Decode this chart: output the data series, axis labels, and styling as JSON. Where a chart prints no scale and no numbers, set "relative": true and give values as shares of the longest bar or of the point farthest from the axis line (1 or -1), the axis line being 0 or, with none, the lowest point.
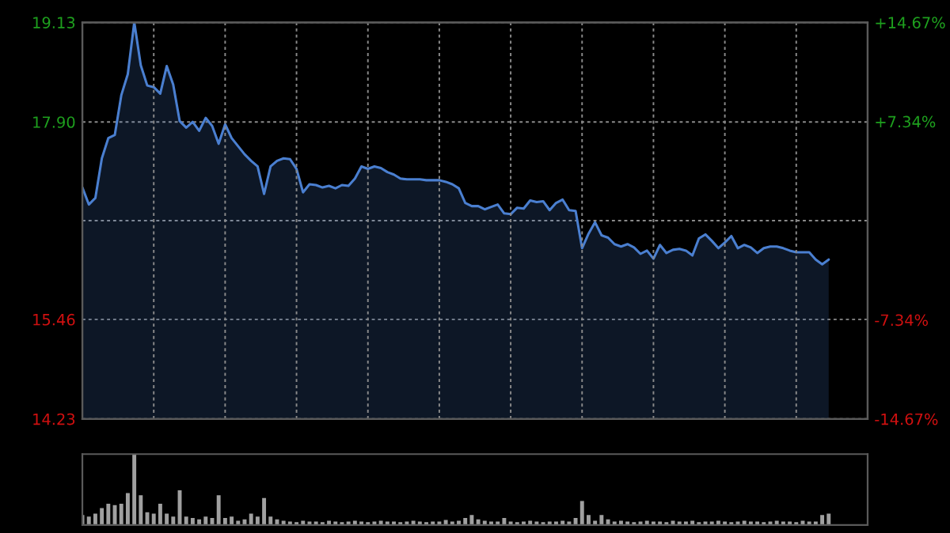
{
  "chart_data": [
    {
      "type": "area",
      "categories": [
        null,
        null,
        null,
        null,
        null,
        null,
        null,
        null,
        null,
        null,
        null,
        null,
        null,
        null,
        null,
        null,
        null,
        null,
        null,
        null,
        null,
        null,
        null,
        null,
        null,
        null,
        null,
        null,
        null,
        null,
        null,
        null,
        null,
        null,
        null,
        null,
        null,
        null,
        null,
        null,
        null,
        null,
        null,
        null,
        null,
        null,
        null,
        null,
        null,
        null,
        null,
        null,
        null,
        null,
        null,
        null,
        null,
        null,
        null,
        null,
        null,
        null,
        null,
        null,
        null,
        null,
        null,
        null,
        null,
        null,
        null,
        null,
        null,
        null,
        null,
        null,
        null,
        null,
        null,
        null,
        null,
        null,
        null,
        null,
        null,
        null,
        null,
        null,
        null,
        null,
        null,
        null,
        null,
        null,
        null,
        null,
        null,
        null,
        null,
        null,
        null,
        null,
        null,
        null,
        null,
        null,
        null,
        null,
        null,
        null,
        null,
        null,
        null,
        null,
        null,
        null
      ],
      "series": [
        {
          "color": "#4a7fd0",
          "values": [
            17.09,
            16.88,
            16.96,
            17.45,
            17.7,
            17.74,
            18.23,
            18.49,
            19.13,
            18.6,
            18.35,
            18.33,
            18.25,
            18.59,
            18.36,
            17.91,
            17.83,
            17.9,
            17.79,
            17.95,
            17.85,
            17.63,
            17.87,
            17.7,
            17.6,
            17.5,
            17.42,
            17.35,
            17.01,
            17.35,
            17.42,
            17.45,
            17.44,
            17.32,
            17.03,
            17.13,
            17.12,
            17.09,
            17.11,
            17.08,
            17.12,
            17.11,
            17.2,
            17.35,
            17.32,
            17.35,
            17.33,
            17.28,
            17.25,
            17.2,
            17.19,
            17.19,
            17.19,
            17.18,
            17.18,
            17.18,
            17.16,
            17.13,
            17.08,
            16.9,
            16.86,
            16.86,
            16.82,
            16.85,
            16.88,
            16.77,
            16.76,
            16.84,
            16.83,
            16.93,
            16.91,
            16.92,
            16.81,
            16.9,
            16.94,
            16.81,
            16.8,
            16.34,
            16.52,
            16.66,
            16.5,
            16.47,
            16.39,
            16.36,
            16.39,
            16.35,
            16.27,
            16.31,
            16.21,
            16.38,
            16.28,
            16.32,
            16.33,
            16.31,
            16.25,
            16.46,
            16.51,
            16.43,
            16.34,
            16.41,
            16.49,
            16.34,
            16.38,
            16.35,
            16.28,
            16.34,
            16.36,
            16.36,
            16.34,
            16.31,
            16.29,
            16.29,
            16.29,
            16.2,
            16.14,
            16.2
          ]
        }
      ],
      "ylim": [
        14.23,
        19.13
      ],
      "yticks": [
        14.23,
        15.46,
        {
          "value": 16.68,
          "label": null
        },
        {
          "value": 17.9,
          "label": "17.90"
        },
        19.13
      ],
      "y2lim": [
        -14.67,
        14.67
      ],
      "y2ticks": [
        {
          "value": -14.67,
          "label": "-14.67%"
        },
        {
          "value": -7.34,
          "label": "-7.34%"
        },
        {
          "value": 0,
          "label": null
        },
        {
          "value": 7.34,
          "label": "+7.34%"
        },
        {
          "value": 14.67,
          "label": "+14.67%"
        }
      ],
      "grid": true,
      "tick_labels": "y"
    },
    {
      "type": "bar",
      "relative": true,
      "tick_labels": false,
      "categories": [
        null,
        null,
        null,
        null,
        null,
        null,
        null,
        null,
        null,
        null,
        null,
        null,
        null,
        null,
        null,
        null,
        null,
        null,
        null,
        null,
        null,
        null,
        null,
        null,
        null,
        null,
        null,
        null,
        null,
        null,
        null,
        null,
        null,
        null,
        null,
        null,
        null,
        null,
        null,
        null,
        null,
        null,
        null,
        null,
        null,
        null,
        null,
        null,
        null,
        null,
        null,
        null,
        null,
        null,
        null,
        null,
        null,
        null,
        null,
        null,
        null,
        null,
        null,
        null,
        null,
        null,
        null,
        null,
        null,
        null,
        null,
        null,
        null,
        null,
        null,
        null,
        null,
        null,
        null,
        null,
        null,
        null,
        null,
        null,
        null,
        null,
        null,
        null,
        null,
        null,
        null,
        null,
        null,
        null,
        null,
        null,
        null,
        null,
        null,
        null,
        null,
        null,
        null,
        null,
        null,
        null,
        null,
        null,
        null,
        null,
        null,
        null,
        null,
        null,
        null,
        null
      ],
      "series": [
        {
          "color": "#a0a0a0",
          "values": [
            0.14,
            0.12,
            0.16,
            0.24,
            0.3,
            0.28,
            0.3,
            0.45,
            1.0,
            0.42,
            0.18,
            0.16,
            0.3,
            0.16,
            0.12,
            0.49,
            0.12,
            0.1,
            0.08,
            0.12,
            0.1,
            0.42,
            0.1,
            0.12,
            0.06,
            0.08,
            0.16,
            0.12,
            0.38,
            0.12,
            0.08,
            0.06,
            0.05,
            0.04,
            0.06,
            0.05,
            0.05,
            0.04,
            0.06,
            0.05,
            0.04,
            0.05,
            0.06,
            0.05,
            0.04,
            0.05,
            0.06,
            0.05,
            0.05,
            0.04,
            0.05,
            0.06,
            0.05,
            0.04,
            0.05,
            0.05,
            0.07,
            0.05,
            0.06,
            0.1,
            0.14,
            0.08,
            0.06,
            0.05,
            0.05,
            0.1,
            0.05,
            0.04,
            0.05,
            0.06,
            0.05,
            0.04,
            0.05,
            0.05,
            0.06,
            0.05,
            0.1,
            0.34,
            0.14,
            0.06,
            0.14,
            0.08,
            0.05,
            0.06,
            0.05,
            0.04,
            0.05,
            0.06,
            0.05,
            0.05,
            0.04,
            0.06,
            0.05,
            0.05,
            0.06,
            0.04,
            0.05,
            0.05,
            0.06,
            0.05,
            0.04,
            0.05,
            0.06,
            0.05,
            0.05,
            0.04,
            0.05,
            0.06,
            0.05,
            0.05,
            0.04,
            0.06,
            0.05,
            0.05,
            0.14,
            0.16
          ]
        }
      ]
    }
  ]
}
